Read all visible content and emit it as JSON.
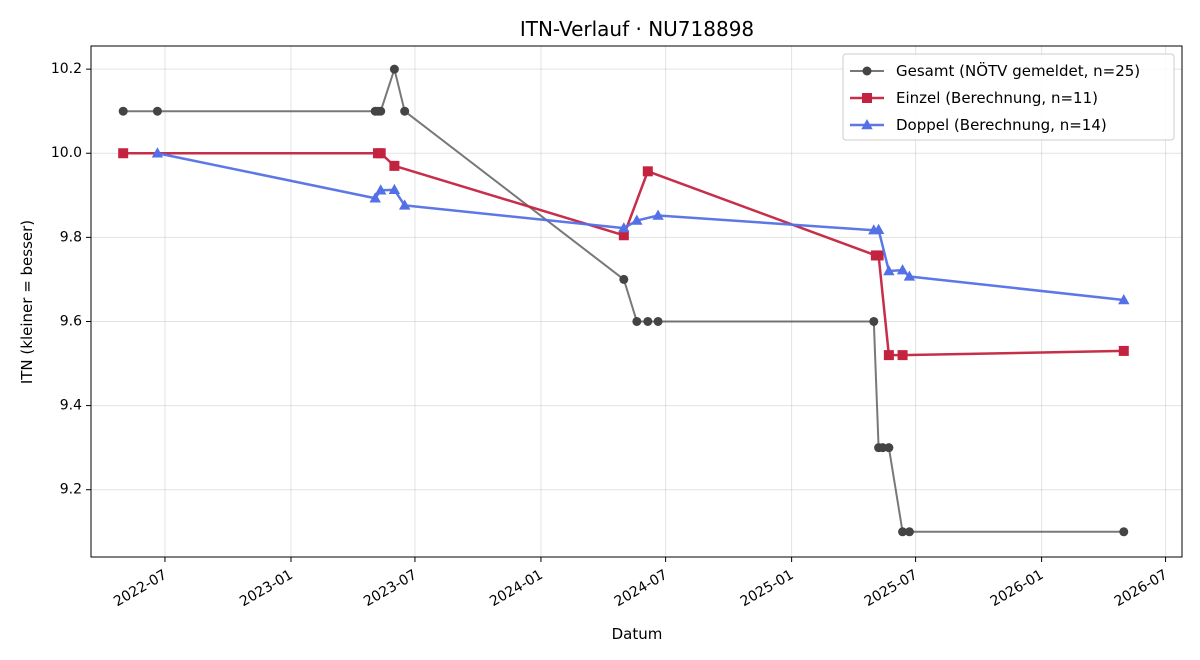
{
  "chart_data": {
    "type": "line",
    "title": "ITN-Verlauf · NU718898",
    "xlabel": "Datum",
    "ylabel": "ITN  (kleiner = besser)",
    "x_axis": "date",
    "xlim": [
      "2022-03-15",
      "2026-07-25"
    ],
    "ylim": [
      9.04,
      10.255
    ],
    "x_ticks": [
      "2022-07-01",
      "2023-01-01",
      "2023-07-01",
      "2024-01-01",
      "2024-07-01",
      "2025-01-01",
      "2025-07-01",
      "2026-01-01",
      "2026-07-01"
    ],
    "x_tick_labels": [
      "2022-07",
      "2023-01",
      "2023-07",
      "2024-01",
      "2024-07",
      "2025-01",
      "2025-07",
      "2026-01",
      "2026-07"
    ],
    "y_ticks": [
      9.2,
      9.4,
      9.6,
      9.8,
      10.0,
      10.2
    ],
    "y_tick_labels": [
      "9.2",
      "9.4",
      "9.6",
      "9.8",
      "10.0",
      "10.2"
    ],
    "grid": true,
    "legend_position": "top-right",
    "series": [
      {
        "name": "Gesamt (NÖTV gemeldet, n=25)",
        "color": "#444444",
        "marker": "circle",
        "points": [
          [
            "2022-05-01",
            10.1
          ],
          [
            "2022-06-20",
            10.1
          ],
          [
            "2023-05-04",
            10.1
          ],
          [
            "2023-05-08",
            10.1
          ],
          [
            "2023-05-12",
            10.1
          ],
          [
            "2023-06-01",
            10.2
          ],
          [
            "2023-06-16",
            10.1
          ],
          [
            "2024-05-01",
            9.7
          ],
          [
            "2024-05-20",
            9.6
          ],
          [
            "2024-06-05",
            9.6
          ],
          [
            "2024-06-20",
            9.6
          ],
          [
            "2025-05-01",
            9.6
          ],
          [
            "2025-05-08",
            9.3
          ],
          [
            "2025-05-14",
            9.3
          ],
          [
            "2025-05-23",
            9.3
          ],
          [
            "2025-06-12",
            9.1
          ],
          [
            "2025-06-22",
            9.1
          ],
          [
            "2026-05-01",
            9.1
          ]
        ]
      },
      {
        "name": "Einzel (Berechnung, n=11)",
        "color": "#c4233f",
        "marker": "square",
        "points": [
          [
            "2022-05-01",
            10.0
          ],
          [
            "2023-05-08",
            10.0
          ],
          [
            "2023-05-12",
            10.0
          ],
          [
            "2023-06-01",
            9.97
          ],
          [
            "2024-05-01",
            9.805
          ],
          [
            "2024-06-05",
            9.957
          ],
          [
            "2025-05-04",
            9.757
          ],
          [
            "2025-05-08",
            9.757
          ],
          [
            "2025-05-23",
            9.52
          ],
          [
            "2025-06-12",
            9.52
          ],
          [
            "2026-05-01",
            9.53
          ]
        ]
      },
      {
        "name": "Doppel (Berechnung, n=14)",
        "color": "#5470e6",
        "marker": "triangle",
        "points": [
          [
            "2022-06-20",
            10.0
          ],
          [
            "2023-05-04",
            9.893
          ],
          [
            "2023-05-12",
            9.912
          ],
          [
            "2023-06-01",
            9.913
          ],
          [
            "2023-06-16",
            9.876
          ],
          [
            "2024-05-01",
            9.822
          ],
          [
            "2024-05-20",
            9.84
          ],
          [
            "2024-06-20",
            9.852
          ],
          [
            "2025-05-01",
            9.817
          ],
          [
            "2025-05-08",
            9.818
          ],
          [
            "2025-05-23",
            9.72
          ],
          [
            "2025-06-12",
            9.722
          ],
          [
            "2025-06-22",
            9.707
          ],
          [
            "2026-05-01",
            9.651
          ]
        ]
      }
    ]
  }
}
